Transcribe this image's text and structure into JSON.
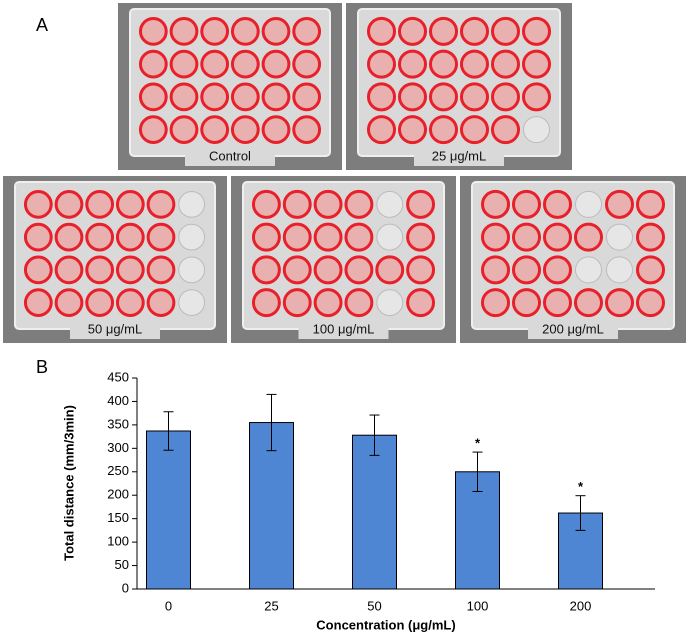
{
  "panel_a": {
    "label": "A",
    "plates": [
      "Control",
      "25 μg/mL",
      "50 μg/mL",
      "100 μg/mL",
      "200 μg/mL"
    ]
  },
  "panel_b": {
    "label": "B"
  },
  "chart_data": {
    "type": "bar",
    "x_label": "Concentration (μg/mL)",
    "y_label": "Total distance (mm/3min)",
    "categories": [
      "0",
      "25",
      "50",
      "100",
      "200"
    ],
    "values": [
      337,
      355,
      328,
      250,
      162
    ],
    "errors": [
      41,
      60,
      43,
      42,
      37
    ],
    "significance": [
      null,
      null,
      null,
      "*",
      "*"
    ],
    "color": "#4f86d4",
    "ylim": [
      0,
      450
    ],
    "yticks": [
      0,
      50,
      100,
      150,
      200,
      250,
      300,
      350,
      400,
      450
    ],
    "grid": false
  }
}
